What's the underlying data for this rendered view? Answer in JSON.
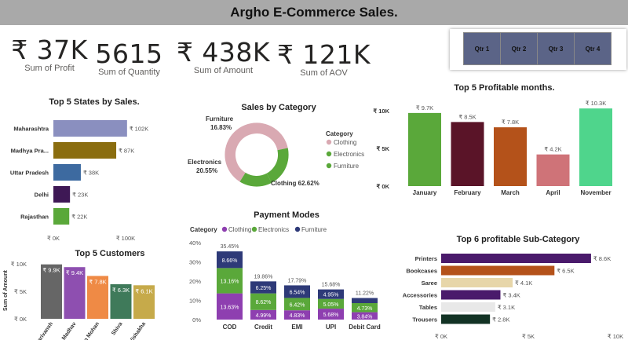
{
  "title": "Argho E-Commerce Sales.",
  "kpis": [
    {
      "value": "₹ 37K",
      "label": "Sum of Profit"
    },
    {
      "value": "5615",
      "label": "Sum of Quantity"
    },
    {
      "value": "₹ 438K",
      "label": "Sum of Amount"
    },
    {
      "value": "₹ 121K",
      "label": "Sum of AOV"
    }
  ],
  "slicer": {
    "items": [
      "Qtr 1",
      "Qtr 2",
      "Qtr 3",
      "Qtr 4"
    ]
  },
  "colors": {
    "purple_dark": "#4a1a6b",
    "green": "#5aa83a",
    "navy": "#2e3a78",
    "clothing": "#e2a9b4"
  },
  "chart_data": [
    {
      "type": "bar",
      "title": "Top 5 States by Sales.",
      "categories": [
        "Maharashtra",
        "Madhya Pra...",
        "Uttar Pradesh",
        "Delhi",
        "Rajasthan"
      ],
      "values": [
        102,
        87,
        38,
        23,
        22
      ],
      "labels": [
        "₹ 102K",
        "₹ 87K",
        "₹ 38K",
        "₹ 23K",
        "₹ 22K"
      ],
      "colors": [
        "#8a8fbf",
        "#8a6d0f",
        "#3d6aa0",
        "#3e1855",
        "#5aa83a"
      ],
      "xticks": [
        "₹ 0K",
        "₹ 100K"
      ],
      "xlim": [
        0,
        100
      ]
    },
    {
      "type": "pie",
      "title": "Sales by Category",
      "legend_title": "Category",
      "slices": [
        {
          "name": "Clothing",
          "value": 62.62,
          "label": "Clothing 62.62%",
          "color": "#d9a9b2"
        },
        {
          "name": "Electronics",
          "value": 20.55,
          "label": "Electronics 20.55%",
          "color": "#5aa83a"
        },
        {
          "name": "Furniture",
          "value": 16.83,
          "label": "Furniture 16.83%",
          "color": "#5aa83a"
        }
      ]
    },
    {
      "type": "bar",
      "title": "Top 5 Profitable months.",
      "categories": [
        "January",
        "February",
        "March",
        "April",
        "November"
      ],
      "values": [
        9.7,
        8.5,
        7.8,
        4.2,
        10.3
      ],
      "labels": [
        "₹ 9.7K",
        "₹ 8.5K",
        "₹ 7.8K",
        "₹ 4.2K",
        "₹ 10.3K"
      ],
      "colors": [
        "#5aa83a",
        "#5a1428",
        "#b4521a",
        "#cf7378",
        "#4fd58c"
      ],
      "yticks": [
        "₹ 0K",
        "₹ 5K",
        "₹ 10K"
      ],
      "ylim": [
        0,
        10
      ]
    },
    {
      "type": "bar",
      "title": "Top 5 Customers",
      "ylabel": "Sum of Amount",
      "categories": [
        "Harivansh",
        "Madhav",
        "Madan Mohan",
        "Shiva",
        "Vishakha"
      ],
      "values": [
        9.9,
        9.4,
        7.8,
        6.3,
        6.1
      ],
      "labels": [
        "₹ 9.9K",
        "₹ 9.4K",
        "₹ 7.8K",
        "₹ 6.3K",
        "₹ 6.1K"
      ],
      "colors": [
        "#666666",
        "#8e4fb0",
        "#ef8a45",
        "#3f7a5a",
        "#c6aa4a"
      ],
      "yticks": [
        "₹ 0K",
        "₹ 5K",
        "₹ 10K"
      ],
      "ylim": [
        0,
        10
      ]
    },
    {
      "type": "bar",
      "title": "Payment Modes",
      "legend_title": "Category",
      "categories": [
        "COD",
        "Credit",
        "EMI",
        "UPI",
        "Debit Card"
      ],
      "series": [
        {
          "name": "Clothing",
          "color": "#8e3fb0",
          "values": [
            13.63,
            4.99,
            4.83,
            5.68,
            3.84
          ],
          "labels": [
            "13.63%",
            "4.99%",
            "4.83%",
            "5.68%",
            "3.84%"
          ]
        },
        {
          "name": "Electronics",
          "color": "#5aa83a",
          "values": [
            13.16,
            8.62,
            6.42,
            5.05,
            4.73
          ],
          "labels": [
            "13.16%",
            "8.62%",
            "6.42%",
            "5.05%",
            "4.73%"
          ]
        },
        {
          "name": "Furniture",
          "color": "#2e3a78",
          "values": [
            8.66,
            6.25,
            6.54,
            4.95,
            2.65
          ],
          "labels": [
            "8.66%",
            "6.25%",
            "6.54%",
            "4.95%",
            ""
          ]
        }
      ],
      "totals": [
        "35.45%",
        "19.86%",
        "17.79%",
        "15.68%",
        "11.22%"
      ],
      "yticks": [
        "0%",
        "10%",
        "20%",
        "30%",
        "40%"
      ],
      "ylim": [
        0,
        40
      ]
    },
    {
      "type": "bar",
      "title": "Top 6 profitable Sub-Category",
      "categories": [
        "Printers",
        "Bookcases",
        "Saree",
        "Accessories",
        "Tables",
        "Trousers"
      ],
      "values": [
        8.6,
        6.5,
        4.1,
        3.4,
        3.1,
        2.8
      ],
      "labels": [
        "₹ 8.6K",
        "₹ 6.5K",
        "₹ 4.1K",
        "₹ 3.4K",
        "₹ 3.1K",
        "₹ 2.8K"
      ],
      "colors": [
        "#4a1a6b",
        "#b4521a",
        "#e7d6a9",
        "#4a1a6b",
        "#e8e8e8",
        "#123224"
      ],
      "xticks": [
        "₹ 0K",
        "₹ 5K",
        "₹ 10K"
      ],
      "xlim": [
        0,
        10
      ]
    }
  ]
}
